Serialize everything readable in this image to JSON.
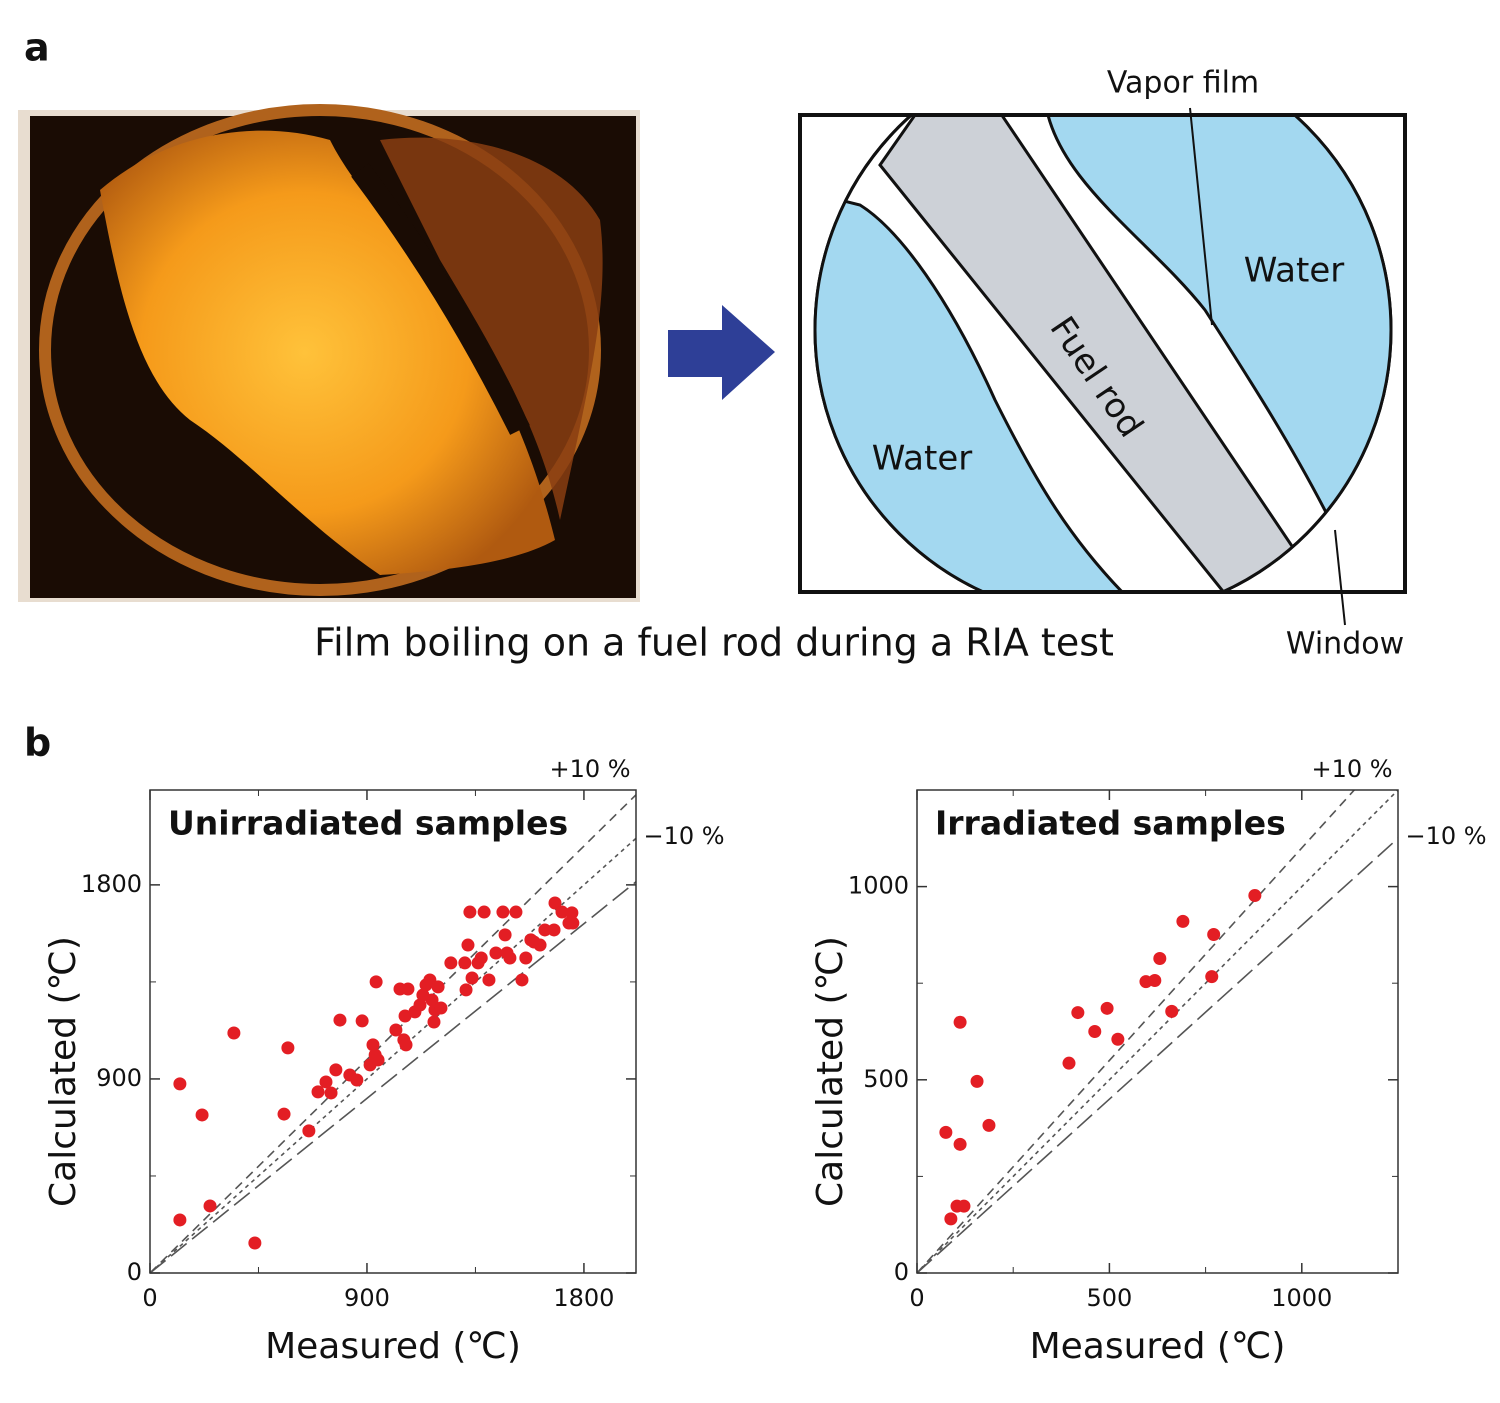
{
  "panel_labels": [
    "a",
    "b"
  ],
  "panel_a": {
    "caption": "Film boiling on a fuel rod during a RIA test",
    "diagram": {
      "vapor_film": "Vapor film",
      "water_right": "Water",
      "fuel_rod": "Fuel rod",
      "water_left": "Water",
      "window": "Window"
    }
  },
  "chart_data": [
    {
      "type": "scatter",
      "title": "Unirradiated samples",
      "x_label": "Measured (℃)",
      "y_label": "Calculated (℃)",
      "xlim": [
        0,
        2016
      ],
      "ylim": [
        0,
        2240
      ],
      "xticks": [
        0,
        900,
        1800
      ],
      "yticks": [
        0,
        900,
        1800
      ],
      "color": "#e31e24",
      "reference_lines": [
        {
          "slope": 1.1,
          "label": "+10 %"
        },
        {
          "slope": 1.0
        },
        {
          "slope": 0.9,
          "label": "−10 %"
        }
      ],
      "x": [
        124,
        216,
        124,
        249,
        348,
        435,
        556,
        572,
        659,
        697,
        730,
        751,
        771,
        788,
        829,
        858,
        880,
        913,
        925,
        934,
        938,
        946,
        1020,
        1037,
        1053,
        1062,
        1058,
        1070,
        1099,
        1120,
        1132,
        1145,
        1161,
        1170,
        1178,
        1182,
        1195,
        1207,
        1248,
        1306,
        1319,
        1311,
        1327,
        1336,
        1361,
        1374,
        1386,
        1406,
        1435,
        1464,
        1473,
        1481,
        1493,
        1518,
        1543,
        1559,
        1580,
        1593,
        1618,
        1638,
        1680,
        1676,
        1709,
        1738,
        1750,
        1754
      ],
      "y": [
        877,
        733,
        246,
        311,
        1113,
        139,
        737,
        1044,
        659,
        840,
        886,
        835,
        942,
        1173,
        918,
        895,
        1169,
        965,
        1058,
        1011,
        1350,
        988,
        1127,
        1317,
        1081,
        1058,
        1192,
        1317,
        1211,
        1243,
        1289,
        1336,
        1359,
        1266,
        1164,
        1220,
        1327,
        1229,
        1438,
        1438,
        1521,
        1313,
        1674,
        1368,
        1438,
        1461,
        1674,
        1359,
        1484,
        1674,
        1568,
        1484,
        1461,
        1674,
        1359,
        1461,
        1545,
        1535,
        1521,
        1591,
        1716,
        1591,
        1674,
        1623,
        1670,
        1623
      ]
    },
    {
      "type": "scatter",
      "title": "Irradiated samples",
      "x_label": "Measured (℃)",
      "y_label": "Calculated (℃)",
      "xlim": [
        0,
        1250
      ],
      "ylim": [
        0,
        1250
      ],
      "xticks": [
        0,
        500,
        1000
      ],
      "yticks": [
        0,
        500,
        1000
      ],
      "color": "#e31e24",
      "reference_lines": [
        {
          "slope": 1.1,
          "label": "+10 %"
        },
        {
          "slope": 1.0
        },
        {
          "slope": 0.9,
          "label": "−10 %"
        }
      ],
      "x": [
        75,
        88,
        104,
        112,
        112,
        122,
        156,
        187,
        395,
        418,
        462,
        494,
        522,
        595,
        618,
        631,
        662,
        691,
        766,
        771,
        878
      ],
      "y": [
        364,
        140,
        173,
        649,
        333,
        173,
        496,
        382,
        543,
        674,
        625,
        685,
        605,
        754,
        757,
        814,
        677,
        910,
        767,
        876,
        977
      ]
    }
  ]
}
